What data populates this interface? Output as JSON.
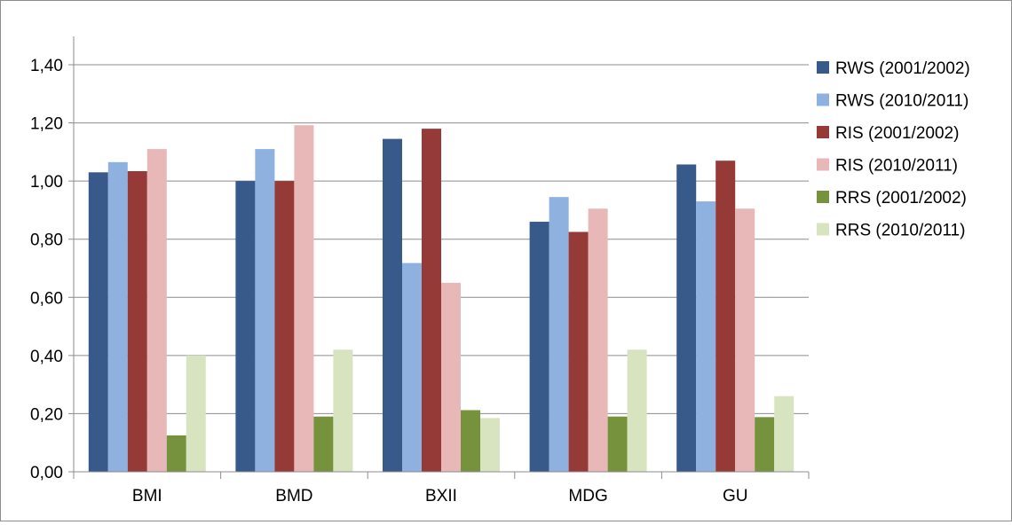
{
  "chart_data": {
    "type": "bar",
    "title": "",
    "xlabel": "",
    "ylabel": "",
    "ylim": [
      0,
      1.4
    ],
    "yticks": [
      "0,00",
      "0,20",
      "0,40",
      "0,60",
      "0,80",
      "1,00",
      "1,20",
      "1,40"
    ],
    "grid": true,
    "legend_position": "right",
    "categories": [
      "BMI",
      "BMD",
      "BXII",
      "MDG",
      "GU"
    ],
    "series": [
      {
        "name": "RWS (2001/2002)",
        "color": "#375a8a",
        "values": [
          1.03,
          1.0,
          1.145,
          0.86,
          1.057
        ]
      },
      {
        "name": "RWS (2010/2011)",
        "color": "#8eb1e0",
        "values": [
          1.065,
          1.11,
          0.718,
          0.945,
          0.93
        ]
      },
      {
        "name": "RIS (2001/2002)",
        "color": "#963a38",
        "values": [
          1.034,
          1.0,
          1.18,
          0.825,
          1.07
        ]
      },
      {
        "name": "RIS (2010/2011)",
        "color": "#e8b8b8",
        "values": [
          1.11,
          1.192,
          0.65,
          0.905,
          0.905
        ]
      },
      {
        "name": "RRS (2001/2002)",
        "color": "#76923c",
        "values": [
          0.125,
          0.19,
          0.212,
          0.19,
          0.188
        ]
      },
      {
        "name": "RRS (2010/2011)",
        "color": "#d8e4bf",
        "values": [
          0.4,
          0.42,
          0.185,
          0.42,
          0.26
        ]
      }
    ]
  }
}
